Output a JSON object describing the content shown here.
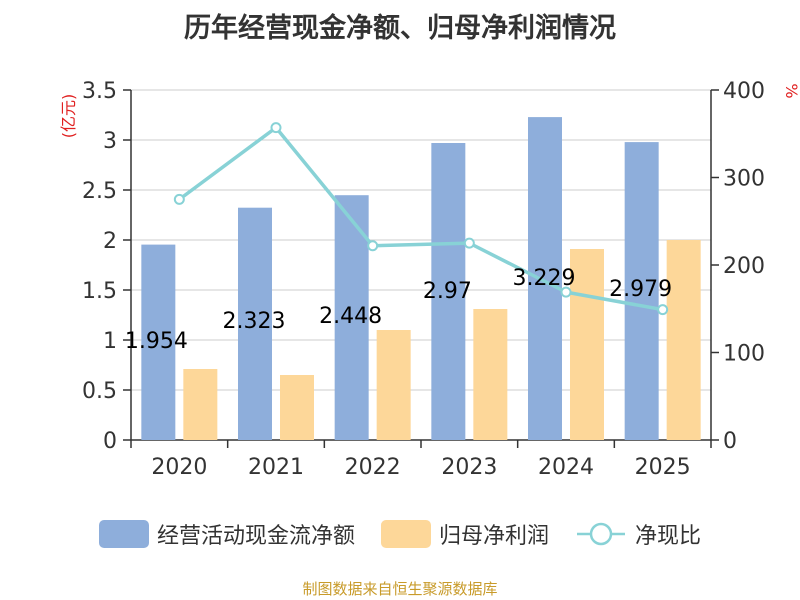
{
  "chart_data": {
    "type": "bar+line",
    "title": "历年经营现金净额、归母净利润情况",
    "categories": [
      "2020",
      "2021",
      "2022",
      "2023",
      "2024",
      "2025"
    ],
    "series": [
      {
        "name": "经营活动现金流净额",
        "type": "bar",
        "axis": "left",
        "values": [
          1.954,
          2.323,
          2.448,
          2.97,
          3.229,
          2.979
        ],
        "color": "#8eaedb",
        "labels": [
          "1.954",
          "2.323",
          "2.448",
          "2.97",
          "3.229",
          "2.979"
        ]
      },
      {
        "name": "归母净利润",
        "type": "bar",
        "axis": "left",
        "values": [
          0.71,
          0.65,
          1.1,
          1.31,
          1.91,
          2.0
        ],
        "color": "#fdd799"
      },
      {
        "name": "净现比",
        "type": "line",
        "axis": "right",
        "values": [
          275,
          357,
          222,
          225,
          169,
          149
        ],
        "color": "#88d2d6"
      }
    ],
    "left_axis": {
      "label": "(亿元)",
      "ylim": [
        0,
        3.5
      ],
      "ticks": [
        "0",
        "0.5",
        "1",
        "1.5",
        "2",
        "2.5",
        "3",
        "3.5"
      ]
    },
    "right_axis": {
      "label": "%",
      "ylim": [
        0,
        400
      ],
      "ticks": [
        "0",
        "100",
        "200",
        "300",
        "400"
      ]
    },
    "legend_position": "bottom"
  },
  "source": "制图数据来自恒生聚源数据库"
}
